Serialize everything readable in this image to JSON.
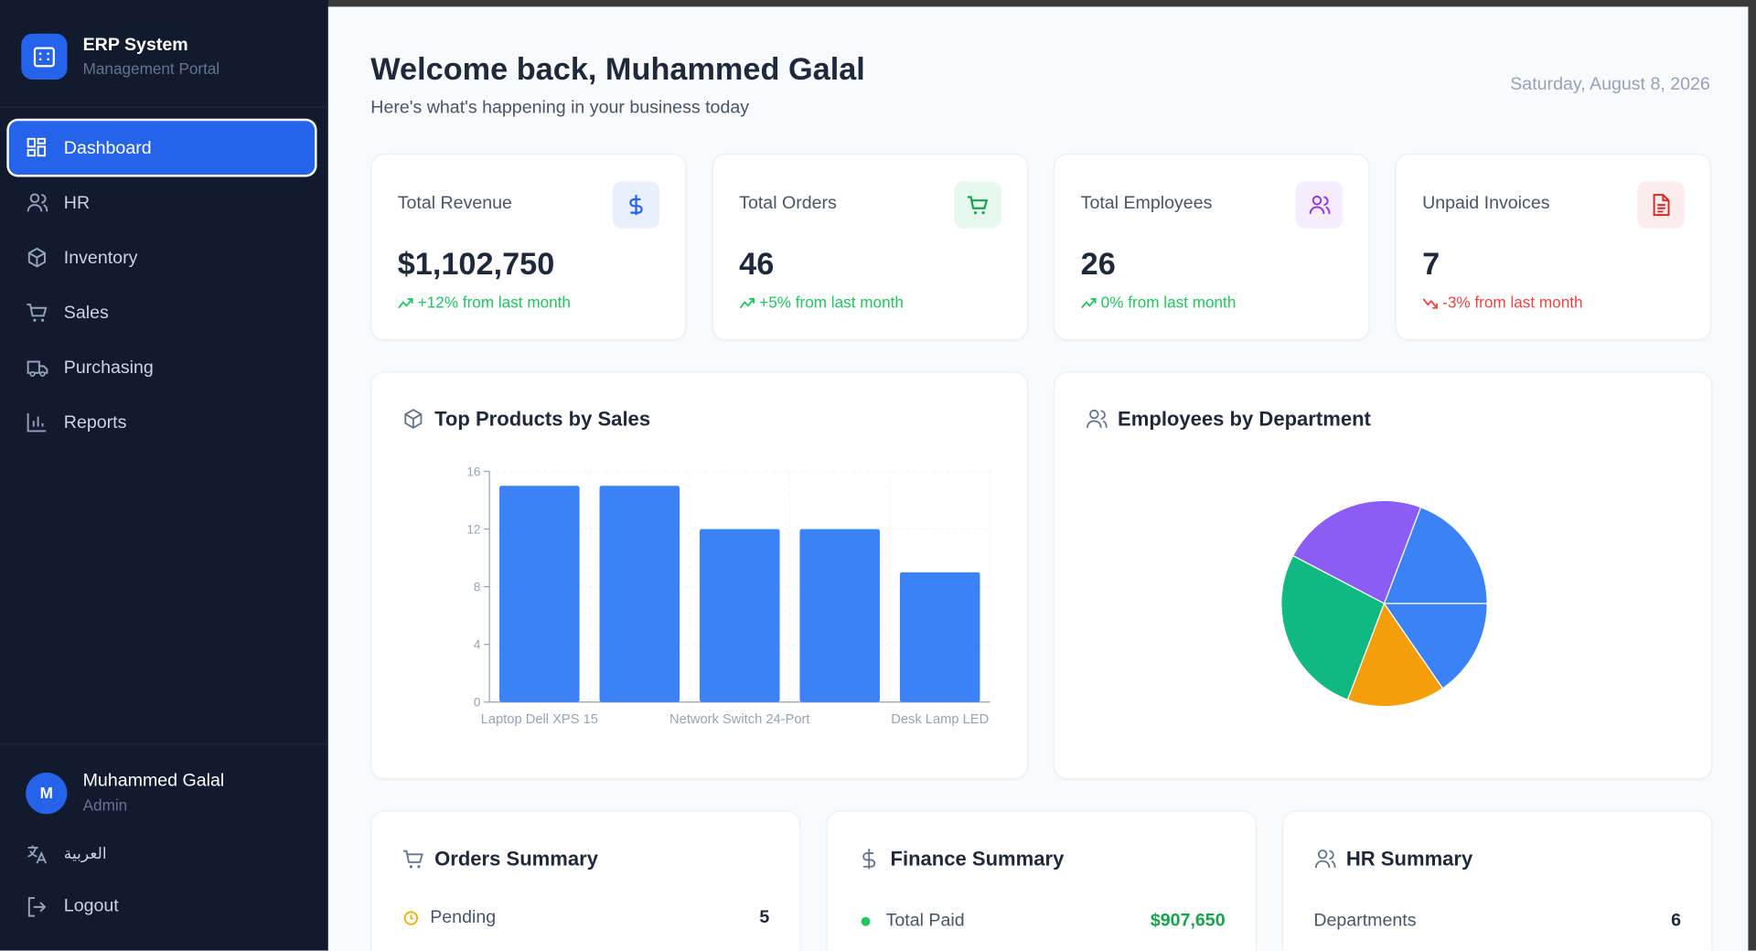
{
  "sidebar": {
    "brand": {
      "title": "ERP System",
      "subtitle": "Management Portal"
    },
    "nav": [
      "Dashboard",
      "HR",
      "Inventory",
      "Sales",
      "Purchasing",
      "Reports"
    ],
    "user": {
      "initial": "M",
      "name": "Muhammed Galal",
      "role": "Admin"
    },
    "language": "العربية",
    "logout": "Logout"
  },
  "header": {
    "title": "Welcome back, Muhammed Galal",
    "subtitle": "Here's what's happening in your business today",
    "date": "Saturday, August 8, 2026"
  },
  "stats": [
    {
      "label": "Total Revenue",
      "value": "$1,102,750",
      "change": "+12% from last month"
    },
    {
      "label": "Total Orders",
      "value": "46",
      "change": "+5% from last month"
    },
    {
      "label": "Total Employees",
      "value": "26",
      "change": "0% from last month"
    },
    {
      "label": "Unpaid Invoices",
      "value": "7",
      "change": "-3% from last month"
    }
  ],
  "chart_data": [
    {
      "type": "bar",
      "title": "Top Products by Sales",
      "categories": [
        "Laptop Dell XPS 15",
        null,
        "Network Switch 24-Port",
        null,
        "Desk Lamp LED"
      ],
      "values": [
        15,
        15,
        12,
        12,
        9
      ],
      "color": "#3b82f6",
      "ylim": [
        0,
        16
      ],
      "yticks": [
        0,
        4,
        8,
        12,
        16
      ],
      "grid": true
    },
    {
      "type": "pie",
      "title": "Employees by Department",
      "values": [
        5,
        6,
        7,
        4,
        4
      ],
      "colors": [
        "#3b82f6",
        "#8b5cf6",
        "#10b981",
        "#f59e0b",
        "#3b82f6"
      ]
    }
  ],
  "summaries": [
    {
      "title": "Orders Summary",
      "rows": [
        [
          "Pending",
          "5"
        ]
      ]
    },
    {
      "title": "Finance Summary",
      "rows": [
        [
          "Total Paid",
          "$907,650"
        ]
      ]
    },
    {
      "title": "HR Summary",
      "rows": [
        [
          "Departments",
          "6"
        ]
      ]
    }
  ]
}
